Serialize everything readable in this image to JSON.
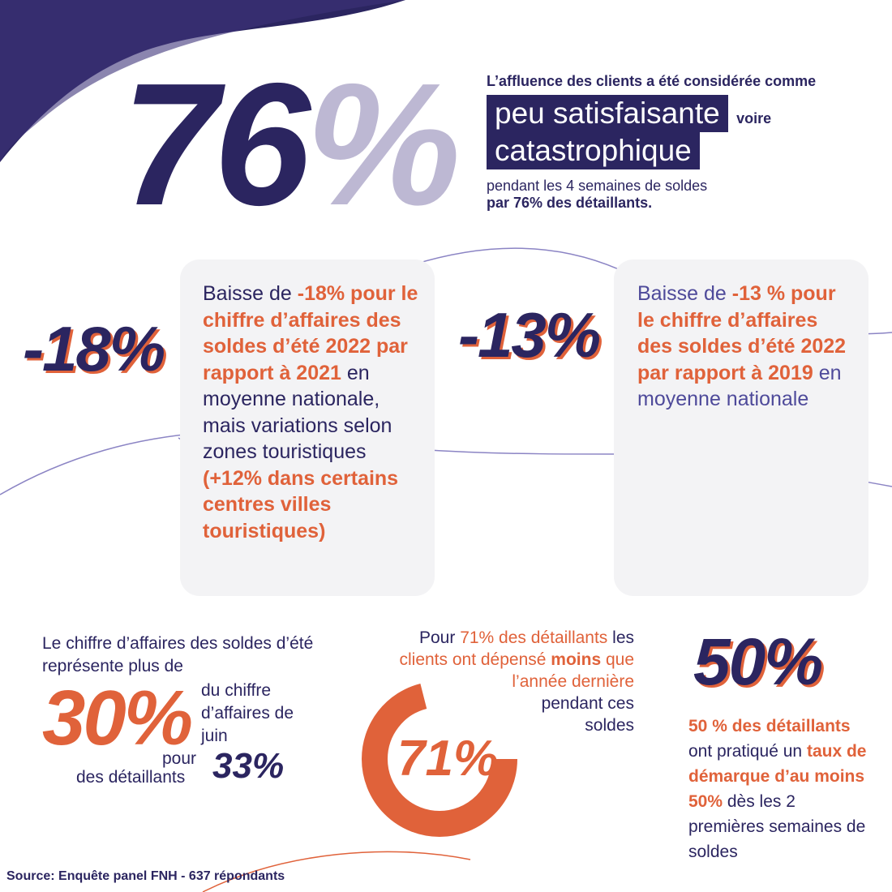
{
  "headline": {
    "number": "76",
    "percent": "%",
    "line1": "L’affluence des clients a été considérée comme",
    "highlight1": "peu satisfaisante",
    "voire": "voire",
    "highlight2": "catastrophique",
    "line4": "pendant les 4 semaines de soldes",
    "line5": "par 76% des détaillants."
  },
  "card_left": {
    "big": "-18%",
    "t1": "Baisse de ",
    "t2": "-18% pour le chiffre d’affaires des soldes d’été 2022 par rapport à 2021",
    "t3": " en moyenne nationale, mais variations selon zones touristiques ",
    "t4": "(+12% dans certains centres villes touristiques)"
  },
  "card_right": {
    "big": "-13%",
    "t1": "Baisse de ",
    "t2": "-13 % pour le chiffre d’affaires des soldes d’été 2022 par rapport à 2019",
    "t3": " en moyenne nationale"
  },
  "stat30": {
    "intro": "Le chiffre d’affaires des soldes d’été représente plus de",
    "big": "30%",
    "side": "du chiffre d’affaires de juin",
    "pour": "pour",
    "des": "des détaillants",
    "sub": "33%"
  },
  "stat71": {
    "a": "Pour ",
    "b": "71% des détaillants",
    "c": " les ",
    "d": "clients ont dépensé ",
    "e": "moins",
    "f": " que l’année dernière",
    "g": "pendant ces soldes",
    "big": "71%",
    "ring_fraction": 0.71
  },
  "stat50": {
    "big": "50%",
    "a": "50 % des détaillants",
    "b": " ont pratiqué un ",
    "c": "taux de démarque d’au moins 50%",
    "d": " dès les 2 premières semaines de soldes"
  },
  "source": "Source: Enquête panel FNH - 637 répondants",
  "colors": {
    "navy": "#2b2560",
    "orange": "#e0623a",
    "lavender": "#bdb8d3",
    "card": "#f3f3f5"
  }
}
